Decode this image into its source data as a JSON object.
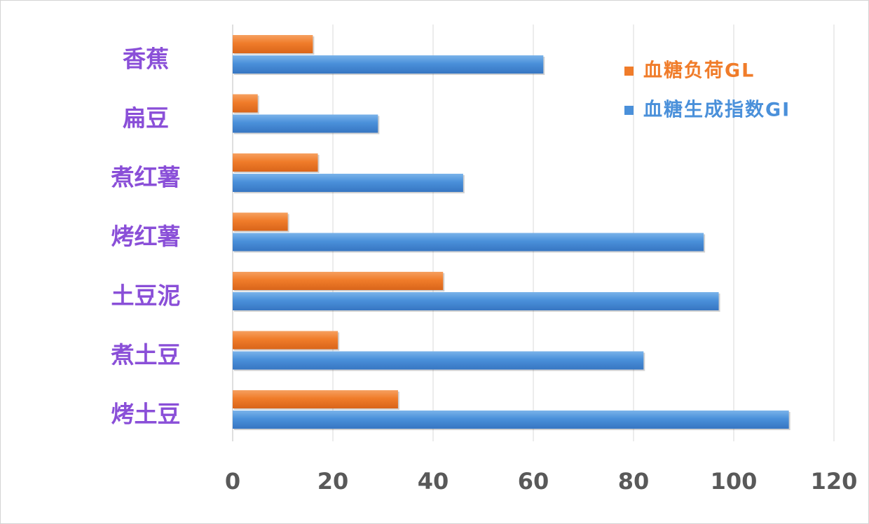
{
  "chart_data": {
    "type": "bar",
    "orientation": "horizontal",
    "categories": [
      "香蕉",
      "扁豆",
      "煮红薯",
      "烤红薯",
      "土豆泥",
      "煮土豆",
      "烤土豆"
    ],
    "series": [
      {
        "name": "血糖负荷GL",
        "color": "#f07c2a",
        "values": [
          16,
          5,
          17,
          11,
          42,
          21,
          33
        ]
      },
      {
        "name": "血糖生成指数GI",
        "color": "#4a90da",
        "values": [
          62,
          29,
          46,
          94,
          97,
          82,
          111
        ]
      }
    ],
    "xlim": [
      0,
      120
    ],
    "xticks": [
      0,
      20,
      40,
      60,
      80,
      100,
      120
    ],
    "xtick_labels": [
      "0",
      "20",
      "40",
      "60",
      "80",
      "100",
      "120"
    ],
    "grid": true,
    "legend_position": "top-right",
    "label_color": "#8a4fd8"
  }
}
